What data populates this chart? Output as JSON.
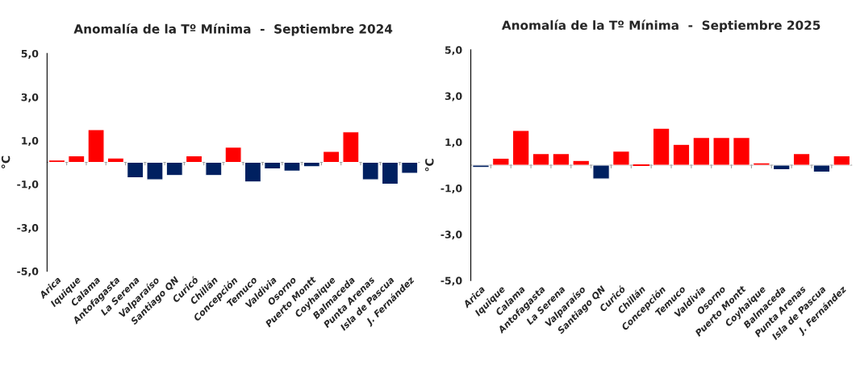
{
  "chart_data": [
    {
      "type": "bar",
      "title": "Anomalía de la Tº Mínima  -  Septiembre 2024",
      "ylabel": "°C",
      "categories": [
        "Arica",
        "Iquique",
        "Calama",
        "Antofagasta",
        "La Serena",
        "Valparaíso",
        "Santiago QN",
        "Curicó",
        "Chillán",
        "Concepción",
        "Temuco",
        "Valdivia",
        "Osorno",
        "Puerto Montt",
        "Coyhaique",
        "Balmaceda",
        "Punta Arenas",
        "Isla de Pascua",
        "J. Fernández"
      ],
      "values": [
        0.1,
        0.3,
        1.5,
        0.2,
        -0.7,
        -0.8,
        -0.6,
        0.3,
        -0.6,
        0.7,
        -0.9,
        -0.3,
        -0.4,
        -0.2,
        0.5,
        1.4,
        -0.8,
        -1.0,
        -0.5
      ],
      "colors": [
        "#ff0000",
        "#ff0000",
        "#ff0000",
        "#ff0000",
        "#002060",
        "#002060",
        "#002060",
        "#ff0000",
        "#002060",
        "#ff0000",
        "#002060",
        "#002060",
        "#002060",
        "#002060",
        "#ff0000",
        "#ff0000",
        "#002060",
        "#002060",
        "#002060"
      ],
      "ylim": [
        -5,
        5
      ],
      "yticks": [
        {
          "value": -5,
          "label": "-5,0"
        },
        {
          "value": -3,
          "label": "-3,0"
        },
        {
          "value": -1,
          "label": "-1,0"
        },
        {
          "value": 1,
          "label": "1,0"
        },
        {
          "value": 3,
          "label": "3,0"
        },
        {
          "value": 5,
          "label": "5,0"
        }
      ],
      "grid": false,
      "legend": false
    },
    {
      "type": "bar",
      "title": "Anomalía de la Tº Mínima  -  Septiembre 2025",
      "ylabel": "°C",
      "categories": [
        "Arica",
        "Iquique",
        "Calama",
        "Antofagasta",
        "La Serena",
        "Valparaíso",
        "Santiago QN",
        "Curicó",
        "Chillán",
        "Concepción",
        "Temuco",
        "Valdivia",
        "Osorno",
        "Puerto Montt",
        "Coyhaique",
        "Balmaceda",
        "Punta Arenas",
        "Isla de Pascua",
        "J. Fernández"
      ],
      "values": [
        -0.1,
        0.3,
        1.5,
        0.5,
        0.5,
        0.2,
        -0.6,
        0.6,
        0.0,
        1.6,
        0.9,
        1.2,
        1.2,
        1.2,
        0.1,
        -0.2,
        0.5,
        -0.3,
        0.4
      ],
      "colors": [
        "#002060",
        "#ff0000",
        "#ff0000",
        "#ff0000",
        "#ff0000",
        "#ff0000",
        "#002060",
        "#ff0000",
        "#ff0000",
        "#ff0000",
        "#ff0000",
        "#ff0000",
        "#ff0000",
        "#ff0000",
        "#ff0000",
        "#002060",
        "#ff0000",
        "#002060",
        "#ff0000"
      ],
      "ylim": [
        -5,
        5
      ],
      "yticks": [
        {
          "value": -5,
          "label": "-5,0"
        },
        {
          "value": -3,
          "label": "-3,0"
        },
        {
          "value": -1,
          "label": "-1,0"
        },
        {
          "value": 1,
          "label": "1,0"
        },
        {
          "value": 3,
          "label": "3,0"
        },
        {
          "value": 5,
          "label": "5,0"
        }
      ],
      "grid": false,
      "legend": false
    }
  ]
}
